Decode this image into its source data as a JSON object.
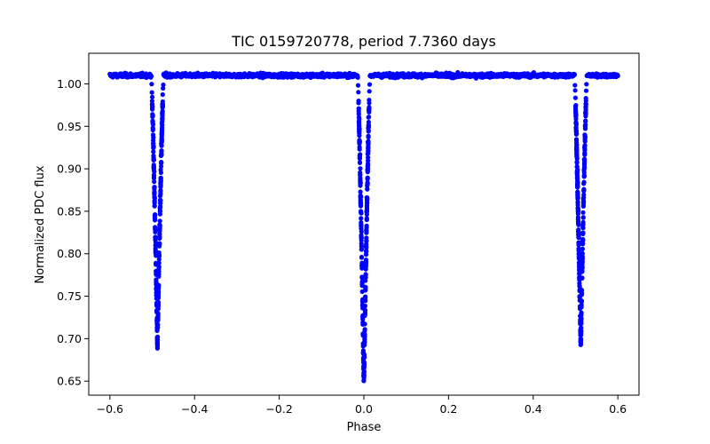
{
  "chart_data": {
    "type": "scatter",
    "title": "TIC 0159720778, period 7.7360 days",
    "xlabel": "Phase",
    "ylabel": "Normalized PDC flux",
    "xlim": [
      -0.65,
      0.65
    ],
    "ylim": [
      0.6335,
      1.036
    ],
    "xticks": [
      -0.6,
      -0.4,
      -0.2,
      0.0,
      0.2,
      0.4,
      0.6
    ],
    "xtick_labels": [
      "−0.6",
      "−0.4",
      "−0.2",
      "0.0",
      "0.2",
      "0.4",
      "0.6"
    ],
    "yticks": [
      0.65,
      0.7,
      0.75,
      0.8,
      0.85,
      0.9,
      0.95,
      1.0
    ],
    "ytick_labels": [
      "0.65",
      "0.70",
      "0.75",
      "0.80",
      "0.85",
      "0.90",
      "0.95",
      "1.00"
    ],
    "grid": false,
    "marker_color": "#0000ff",
    "series": [
      {
        "name": "PDC flux",
        "phase_range": [
          -0.6,
          0.6
        ],
        "baseline_flux": 1.01,
        "baseline_scatter": 0.008,
        "eclipses": [
          {
            "center": -0.4877,
            "depth": 0.31,
            "half_width": 0.014
          },
          {
            "center": 0.0,
            "depth": 0.355,
            "half_width": 0.014
          },
          {
            "center": 0.5123,
            "depth": 0.31,
            "half_width": 0.014
          }
        ],
        "min_flux": 0.645
      }
    ]
  }
}
